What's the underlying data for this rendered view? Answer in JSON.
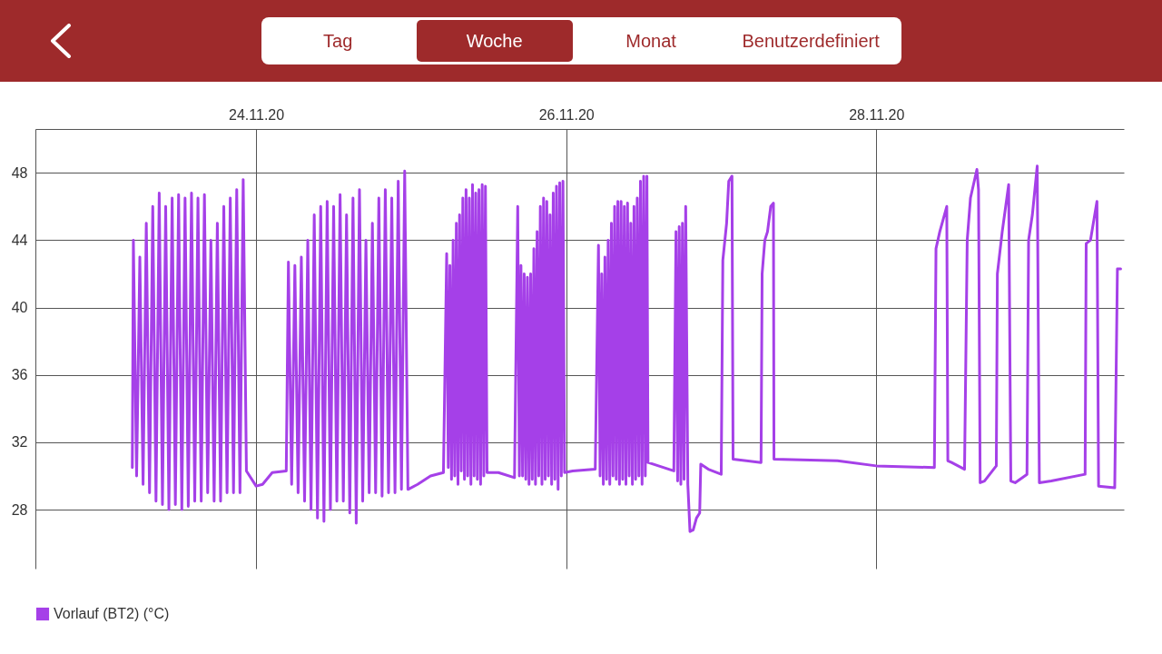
{
  "chart_data": {
    "type": "line",
    "annotations": [
      "Tag",
      "Woche",
      "Monat",
      "Benutzerdefiniert"
    ],
    "series": [
      {
        "name": "Vorlauf (BT2) (°C)",
        "color": "#a540e8",
        "x": [
          "--11-23T04:50",
          "--11-23T05:00",
          "--11-23T05:30",
          "--11-23T06:00",
          "--11-23T06:30",
          "--11-23T07:00",
          "--11-23T07:30",
          "--11-23T08:00",
          "--11-23T08:30",
          "--11-23T09:00",
          "--11-23T09:30",
          "--11-23T10:00",
          "--11-23T10:30",
          "--11-23T11:00",
          "--11-23T11:30",
          "--11-23T12:00",
          "--11-23T12:30",
          "--11-23T13:00",
          "--11-23T13:30",
          "--11-23T14:00",
          "--11-23T14:30",
          "--11-23T15:00",
          "--11-23T15:30",
          "--11-23T16:00",
          "--11-23T16:30",
          "--11-23T17:00",
          "--11-23T17:30",
          "--11-23T18:00",
          "--11-23T18:30",
          "--11-23T19:00",
          "--11-23T19:30",
          "--11-23T20:00",
          "--11-23T20:30",
          "--11-23T21:00",
          "--11-23T21:30",
          "--11-23T22:00",
          "--11-23T22:30",
          "--11-24T00:00",
          "--11-24T01:00",
          "--11-24T02:30",
          "--11-24T04:40",
          "--11-24T05:00",
          "--11-24T05:30",
          "--11-24T06:00",
          "--11-24T06:30",
          "--11-24T07:00",
          "--11-24T07:30",
          "--11-24T08:00",
          "--11-24T08:30",
          "--11-24T09:00",
          "--11-24T09:30",
          "--11-24T10:00",
          "--11-24T10:30",
          "--11-24T11:00",
          "--11-24T11:30",
          "--11-24T12:00",
          "--11-24T12:30",
          "--11-24T13:00",
          "--11-24T13:30",
          "--11-24T14:00",
          "--11-24T14:30",
          "--11-24T15:00",
          "--11-24T15:30",
          "--11-24T16:00",
          "--11-24T16:30",
          "--11-24T17:00",
          "--11-24T17:30",
          "--11-24T18:00",
          "--11-24T18:30",
          "--11-24T19:00",
          "--11-24T19:30",
          "--11-24T20:00",
          "--11-24T20:30",
          "--11-24T21:00",
          "--11-24T21:30",
          "--11-24T22:00",
          "--11-24T22:30",
          "--11-24T23:00",
          "--11-24T23:30",
          "--11-25T01:00",
          "--11-25T03:00",
          "--11-25T05:00",
          "--11-25T05:30",
          "--11-25T05:45",
          "--11-25T06:00",
          "--11-25T06:15",
          "--11-25T06:30",
          "--11-25T06:45",
          "--11-25T07:00",
          "--11-25T07:15",
          "--11-25T07:30",
          "--11-25T07:45",
          "--11-25T08:00",
          "--11-25T08:15",
          "--11-25T08:30",
          "--11-25T08:45",
          "--11-25T09:00",
          "--11-25T09:15",
          "--11-25T09:30",
          "--11-25T09:45",
          "--11-25T10:00",
          "--11-25T10:15",
          "--11-25T10:30",
          "--11-25T10:45",
          "--11-25T11:00",
          "--11-25T11:15",
          "--11-25T11:30",
          "--11-25T11:45",
          "--11-25T13:30",
          "--11-25T16:00",
          "--11-25T16:30",
          "--11-25T16:45",
          "--11-25T17:00",
          "--11-25T17:15",
          "--11-25T17:30",
          "--11-25T17:45",
          "--11-25T18:00",
          "--11-25T18:15",
          "--11-25T18:30",
          "--11-25T18:45",
          "--11-25T19:00",
          "--11-25T19:15",
          "--11-25T19:30",
          "--11-25T19:45",
          "--11-25T20:00",
          "--11-25T20:15",
          "--11-25T20:30",
          "--11-25T20:45",
          "--11-25T21:00",
          "--11-25T21:15",
          "--11-25T21:30",
          "--11-25T21:45",
          "--11-25T22:00",
          "--11-25T22:15",
          "--11-25T22:30",
          "--11-25T22:45",
          "--11-25T23:00",
          "--11-25T23:15",
          "--11-25T23:30",
          "--11-25T23:45",
          "--11-26T01:00",
          "--11-26T04:30",
          "--11-26T05:00",
          "--11-26T05:15",
          "--11-26T05:30",
          "--11-26T05:45",
          "--11-26T06:00",
          "--11-26T06:15",
          "--11-26T06:30",
          "--11-26T06:45",
          "--11-26T07:00",
          "--11-26T07:15",
          "--11-26T07:30",
          "--11-26T07:45",
          "--11-26T08:00",
          "--11-26T08:15",
          "--11-26T08:30",
          "--11-26T08:45",
          "--11-26T09:00",
          "--11-26T09:15",
          "--11-26T09:30",
          "--11-26T09:45",
          "--11-26T10:00",
          "--11-26T10:15",
          "--11-26T10:30",
          "--11-26T10:45",
          "--11-26T11:00",
          "--11-26T11:15",
          "--11-26T11:30",
          "--11-26T11:45",
          "--11-26T12:00",
          "--11-26T12:15",
          "--11-26T12:30",
          "--11-26T12:40",
          "--11-26T16:40",
          "--11-26T17:00",
          "--11-26T17:15",
          "--11-26T17:30",
          "--11-26T17:45",
          "--11-26T18:00",
          "--11-26T18:15",
          "--11-26T18:30",
          "--11-26T18:50",
          "--11-26T19:10",
          "--11-26T19:40",
          "--11-26T20:10",
          "--11-26T20:40",
          "--11-26T20:50",
          "--11-26T22:00",
          "--11-27T00:00",
          "--11-27T00:15",
          "--11-27T00:50",
          "--11-27T01:10",
          "--11-27T01:40",
          "--11-27T01:50",
          "--11-27T06:10",
          "--11-27T06:20",
          "--11-27T06:45",
          "--11-27T07:10",
          "--11-27T07:40",
          "--11-27T08:05",
          "--11-27T08:10",
          "--11-27T18:00",
          "--11-28T00:00",
          "--11-28T09:00",
          "--11-28T09:15",
          "--11-28T09:50",
          "--11-28T10:55",
          "--11-28T11:05",
          "--11-28T11:40",
          "--11-28T13:40",
          "--11-28T14:05",
          "--11-28T14:35",
          "--11-28T15:35",
          "--11-28T15:50",
          "--11-28T16:05",
          "--11-28T16:45",
          "--11-28T18:35",
          "--11-28T18:45",
          "--11-28T19:30",
          "--11-28T20:30",
          "--11-28T20:50",
          "--11-28T21:30",
          "--11-28T23:20",
          "--11-28T23:35",
          "--11-29T00:10",
          "--11-29T00:55",
          "--11-29T01:15",
          "--11-29T03:05",
          "--11-29T08:20",
          "--11-29T08:30",
          "--11-29T09:10",
          "--11-29T10:10",
          "--11-29T10:25",
          "--11-29T12:55",
          "--11-29T13:20",
          "--11-29T13:50"
        ],
        "values": [
          30.5,
          44,
          30,
          43,
          29.5,
          45,
          29,
          46,
          28.5,
          46.8,
          28.3,
          46,
          28,
          46.5,
          28.3,
          46.7,
          28,
          46.5,
          28.2,
          46.8,
          28.5,
          46.5,
          28.5,
          46.7,
          29,
          44,
          28.5,
          45,
          28.5,
          46,
          29,
          46.5,
          29,
          47,
          29,
          47.6,
          30.3,
          29.4,
          29.5,
          30.2,
          30.3,
          42.7,
          29.5,
          42.5,
          29,
          43,
          28.5,
          44,
          28,
          45.5,
          27.5,
          46,
          27.3,
          46.3,
          28,
          46,
          28.5,
          46.7,
          28.5,
          45.5,
          27.8,
          46.5,
          27.2,
          47,
          28.5,
          44,
          29,
          45,
          29,
          46.5,
          28.8,
          47,
          29,
          46.5,
          29,
          47.5,
          29.2,
          48.1,
          29.2,
          29.5,
          30,
          30.2,
          43.2,
          30.5,
          42.5,
          29.8,
          44,
          30,
          45,
          29.5,
          45.5,
          30.3,
          46.5,
          29.8,
          47,
          30,
          46.5,
          29.5,
          47.3,
          30,
          46.8,
          29.8,
          47,
          29.5,
          47.3,
          30,
          47.2,
          30.2,
          30.2,
          29.9,
          46,
          30,
          42.5,
          30,
          42,
          29.8,
          41.8,
          29.5,
          42,
          29.8,
          43.5,
          29.5,
          44.5,
          30,
          46,
          29.5,
          46.5,
          29.8,
          46.3,
          30,
          45.5,
          29.5,
          46.8,
          29.8,
          47.2,
          29.2,
          47.4,
          30,
          47.5,
          30.2,
          30.3,
          30.4,
          43.7,
          30,
          42,
          29.5,
          43,
          29.8,
          44,
          29.5,
          45,
          30,
          46,
          29.8,
          46.3,
          29.5,
          46.3,
          29.8,
          46,
          29.5,
          46.2,
          30,
          45,
          29.5,
          46,
          29.8,
          46.5,
          30,
          47.5,
          29.5,
          47.8,
          30,
          47.8,
          30.8,
          30.3,
          44.5,
          29.7,
          44.8,
          29.5,
          45,
          29.8,
          46,
          29.5,
          26.7,
          26.8,
          27.5,
          27.8,
          30.7,
          30.4,
          30.1,
          42.8,
          45,
          47.5,
          47.8,
          31,
          30.8,
          42,
          44,
          44.5,
          46,
          46.2,
          31,
          30.9,
          30.6,
          30.5,
          43.5,
          44.5,
          46,
          30.9,
          30.8,
          30.4,
          44,
          46.5,
          48.2,
          47,
          29.6,
          29.7,
          30.6,
          42,
          44.5,
          47.3,
          29.7,
          29.6,
          30.1,
          44,
          45.5,
          48.4,
          29.6,
          29.7,
          30.1,
          43.8,
          44,
          46.3,
          29.4,
          29.3,
          42.3,
          42.3
        ]
      }
    ],
    "xlim": [
      "--11-22T13:50",
      "--11-29T14:20"
    ],
    "xticks": [
      {
        "value": "--11-24",
        "label": "24.11.20"
      },
      {
        "value": "--11-26",
        "label": "26.11.20"
      },
      {
        "value": "--11-28",
        "label": "28.11.20"
      }
    ],
    "ylim": [
      24.5,
      50.6
    ],
    "yticks": [
      28,
      32,
      36,
      40,
      44,
      48
    ],
    "grid": true,
    "legend": "bottom left",
    "line_style": "solid",
    "marker": "none"
  }
}
